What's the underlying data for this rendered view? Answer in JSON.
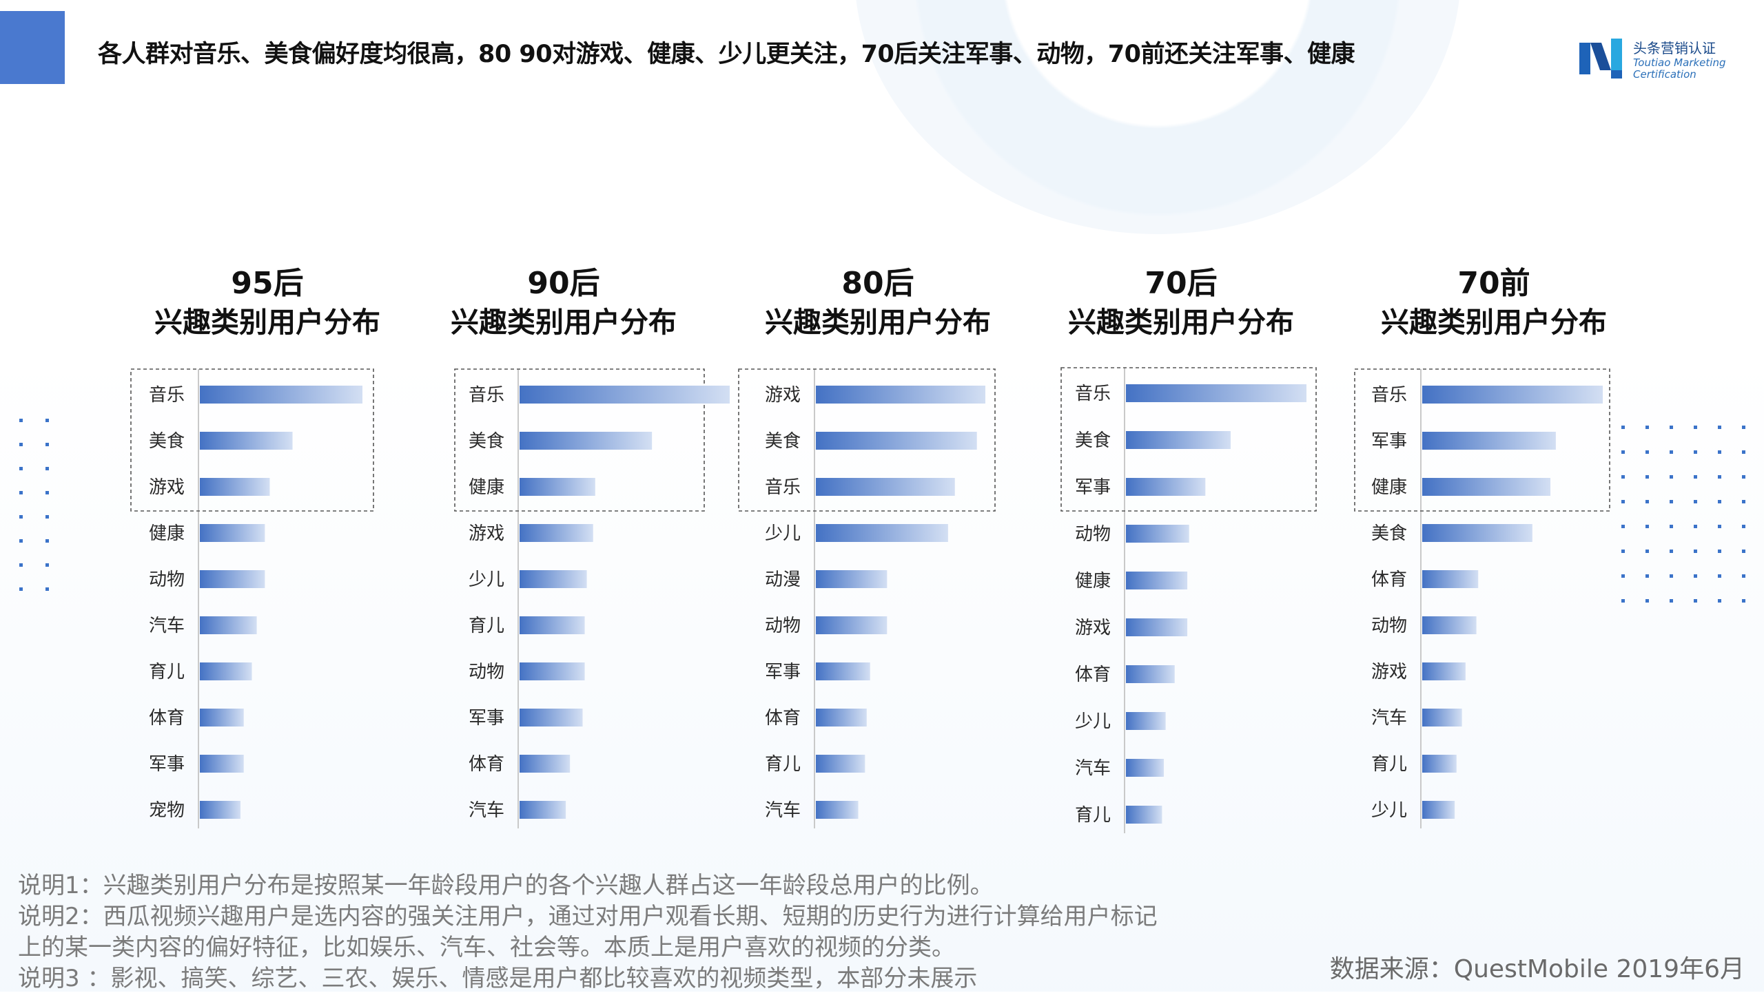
{
  "header": {
    "headline": "各人群对音乐、美食偏好度均很高，80 90对游戏、健康、少儿更关注，70后关注军事、动物，70前还关注军事、健康"
  },
  "logo": {
    "name_cn": "头条营销认证",
    "name_en_1": "Toutiao Marketing",
    "name_en_2": "Certification"
  },
  "colors": {
    "accent": "#4a79cf",
    "bar_dark": "#4472c4",
    "bar_light": "#cfdcf2",
    "dashed_box": "#555555"
  },
  "chart_data": [
    {
      "type": "bar",
      "orientation": "horizontal",
      "title": [
        "95后",
        "兴趣类别用户分布"
      ],
      "categories": [
        "音乐",
        "美食",
        "游戏",
        "健康",
        "动物",
        "汽车",
        "育儿",
        "体育",
        "军事",
        "宠物"
      ],
      "values": [
        100,
        57,
        43,
        40,
        40,
        35,
        32,
        27,
        27,
        25
      ],
      "highlight_top": 3
    },
    {
      "type": "bar",
      "orientation": "horizontal",
      "title": [
        "90后",
        "兴趣类别用户分布"
      ],
      "categories": [
        "音乐",
        "美食",
        "健康",
        "游戏",
        "少儿",
        "育儿",
        "动物",
        "军事",
        "体育",
        "汽车"
      ],
      "values": [
        100,
        63,
        36,
        35,
        32,
        31,
        31,
        30,
        24,
        22
      ],
      "highlight_top": 3
    },
    {
      "type": "bar",
      "orientation": "horizontal",
      "title": [
        "80后",
        "兴趣类别用户分布"
      ],
      "categories": [
        "游戏",
        "美食",
        "音乐",
        "少儿",
        "动漫",
        "动物",
        "军事",
        "体育",
        "育儿",
        "汽车"
      ],
      "values": [
        100,
        95,
        82,
        78,
        42,
        42,
        32,
        30,
        29,
        25
      ],
      "highlight_top": 3
    },
    {
      "type": "bar",
      "orientation": "horizontal",
      "title": [
        "70后",
        "兴趣类别用户分布"
      ],
      "categories": [
        "音乐",
        "美食",
        "军事",
        "动物",
        "健康",
        "游戏",
        "体育",
        "少儿",
        "汽车",
        "育儿"
      ],
      "values": [
        100,
        58,
        44,
        35,
        34,
        34,
        27,
        22,
        21,
        20
      ],
      "highlight_top": 3
    },
    {
      "type": "bar",
      "orientation": "horizontal",
      "title": [
        "70前",
        "兴趣类别用户分布"
      ],
      "categories": [
        "音乐",
        "军事",
        "健康",
        "美食",
        "体育",
        "动物",
        "游戏",
        "汽车",
        "育儿",
        "少儿"
      ],
      "values": [
        100,
        74,
        71,
        61,
        31,
        30,
        24,
        22,
        19,
        18
      ],
      "highlight_top": 3
    }
  ],
  "notes": {
    "line1": "说明1：兴趣类别用户分布是按照某一年龄段用户的各个兴趣人群占这一年龄段总用户的比例。",
    "line2": "说明2：西瓜视频兴趣用户是选内容的强关注用户，通过对用户观看长期、短期的历史行为进行计算给用户标记",
    "line3": "上的某一类内容的偏好特征，比如娱乐、汽车、社会等。本质上是用户喜欢的视频的分类。",
    "line4": "说明3 ：影视、搞笑、综艺、三农、娱乐、情感是用户都比较喜欢的视频类型，本部分未展示"
  },
  "source": "数据来源：QuestMobile 2019年6月"
}
